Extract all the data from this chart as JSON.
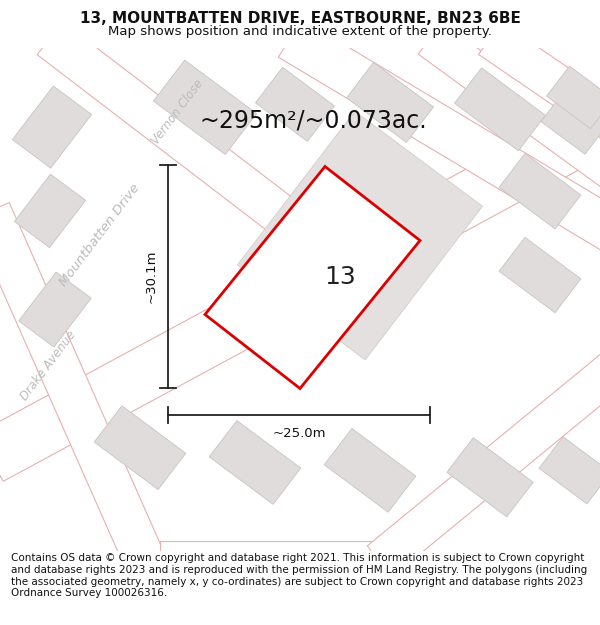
{
  "title_line1": "13, MOUNTBATTEN DRIVE, EASTBOURNE, BN23 6BE",
  "title_line2": "Map shows position and indicative extent of the property.",
  "footer_text": "Contains OS data © Crown copyright and database right 2021. This information is subject to Crown copyright and database rights 2023 and is reproduced with the permission of HM Land Registry. The polygons (including the associated geometry, namely x, y co-ordinates) are subject to Crown copyright and database rights 2023 Ordnance Survey 100026316.",
  "area_label": "~295m²/~0.073ac.",
  "number_label": "13",
  "dim_width": "~25.0m",
  "dim_height": "~30.1m",
  "map_bg": "#faf7f7",
  "building_fill": "#e0dcdc",
  "building_edge": "#c8c4c4",
  "road_line_color": "#e8b0b0",
  "plot_outline_color": "#dd0000",
  "plot_fill_color": "#ffffff",
  "plot_inner_fill": "#e8e4e4",
  "dim_line_color": "#222222",
  "title_fontsize": 11,
  "subtitle_fontsize": 9.5,
  "area_fontsize": 17,
  "number_fontsize": 18,
  "dim_fontsize": 9.5,
  "footer_fontsize": 7.5,
  "street_label_color": "#bbbbbb",
  "street_label_fontsize": 9.5
}
